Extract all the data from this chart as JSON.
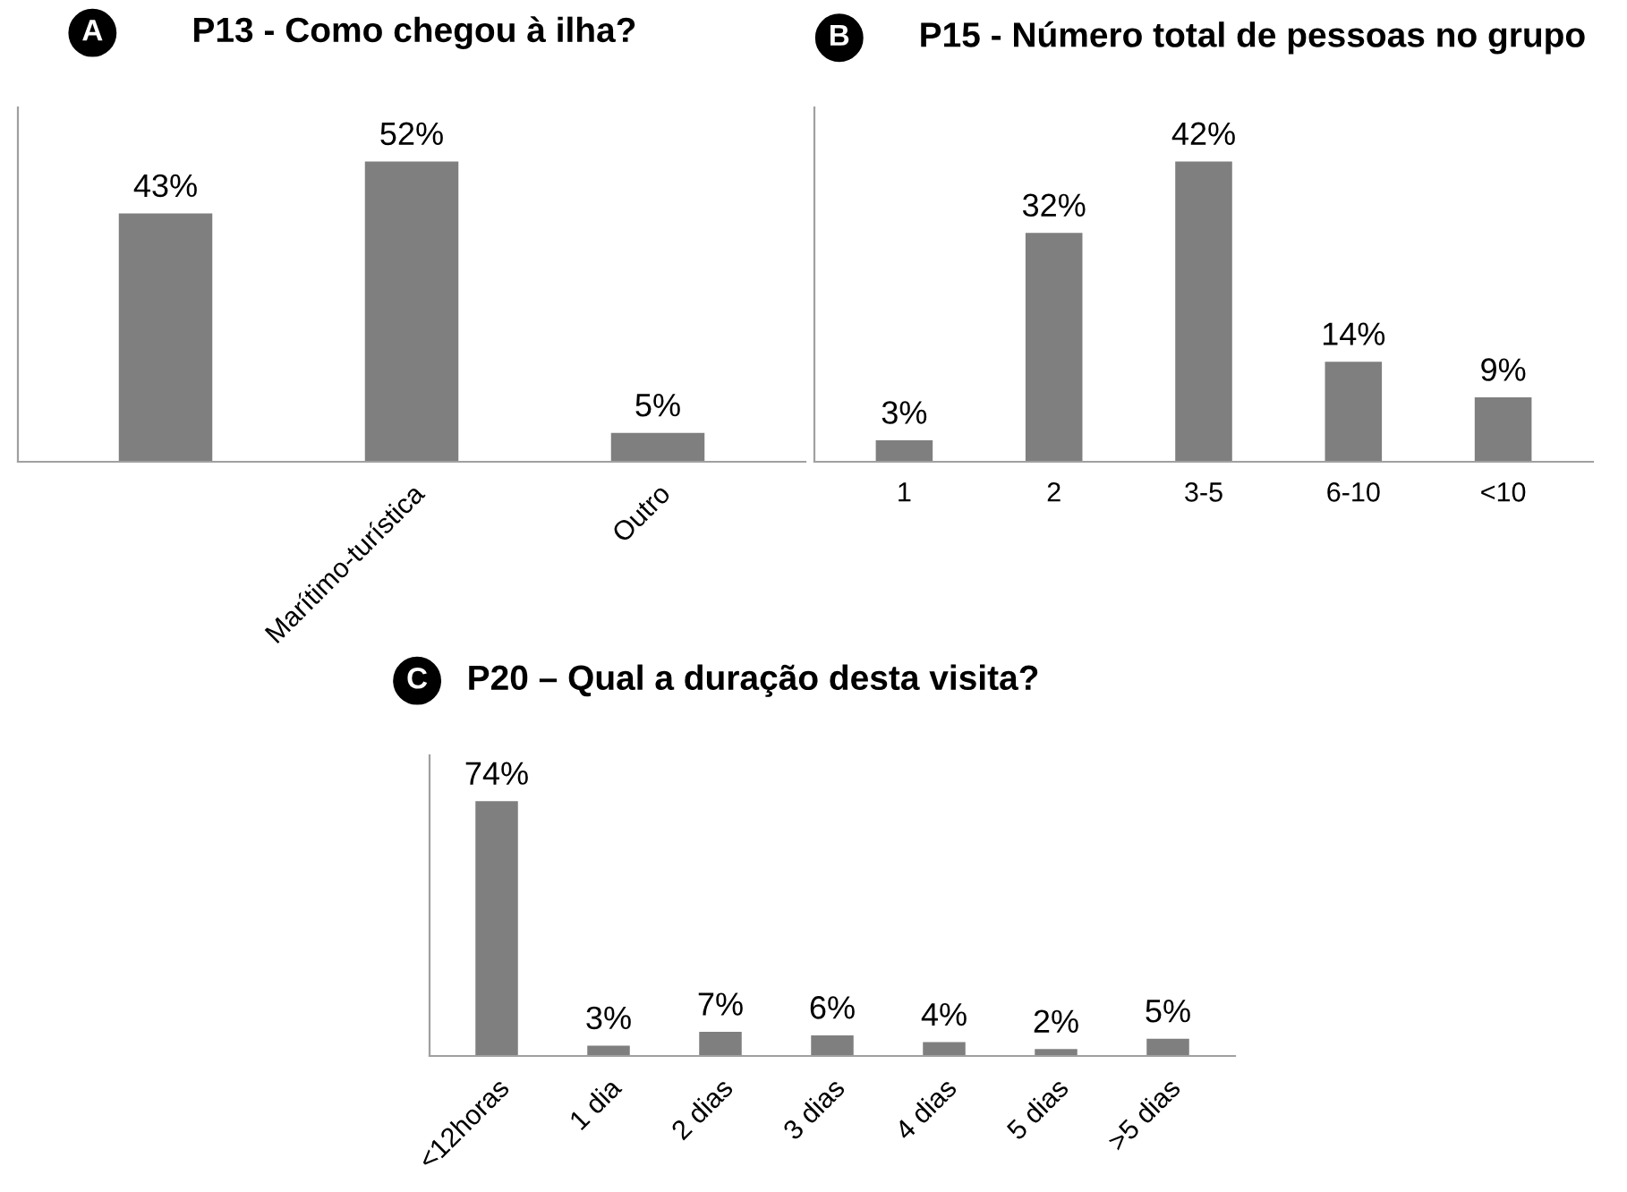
{
  "chart_data": [
    {
      "type": "bar",
      "title": "P13 - Como chegou à ilha?",
      "annotations": [
        "A"
      ],
      "categories": [
        null,
        "Marítimo-turística",
        "Outro"
      ],
      "values": [
        43,
        52,
        5
      ],
      "value_labels": [
        "43%",
        "52%",
        "5%"
      ],
      "color": "#7f7f7f",
      "grid": false,
      "legend": false
    },
    {
      "type": "bar",
      "title": "P15 - Número total de pessoas no grupo",
      "annotations": [
        "B"
      ],
      "categories": [
        "1",
        "2",
        "3-5",
        "6-10",
        "<10"
      ],
      "values": [
        3,
        32,
        42,
        14,
        9
      ],
      "value_labels": [
        "3%",
        "32%",
        "42%",
        "14%",
        "9%"
      ],
      "color": "#7f7f7f",
      "grid": false,
      "legend": false
    },
    {
      "type": "bar",
      "title": "P20 – Qual a duração desta visita?",
      "annotations": [
        "C"
      ],
      "categories": [
        "<12horas",
        "1 dia",
        "2 dias",
        "3 dias",
        "4 dias",
        "5 dias",
        ">5 dias"
      ],
      "values": [
        74,
        3,
        7,
        6,
        4,
        2,
        5
      ],
      "value_labels": [
        "74%",
        "3%",
        "7%",
        "6%",
        "4%",
        "2%",
        "5%"
      ],
      "color": "#7f7f7f",
      "grid": false,
      "legend": false
    }
  ]
}
